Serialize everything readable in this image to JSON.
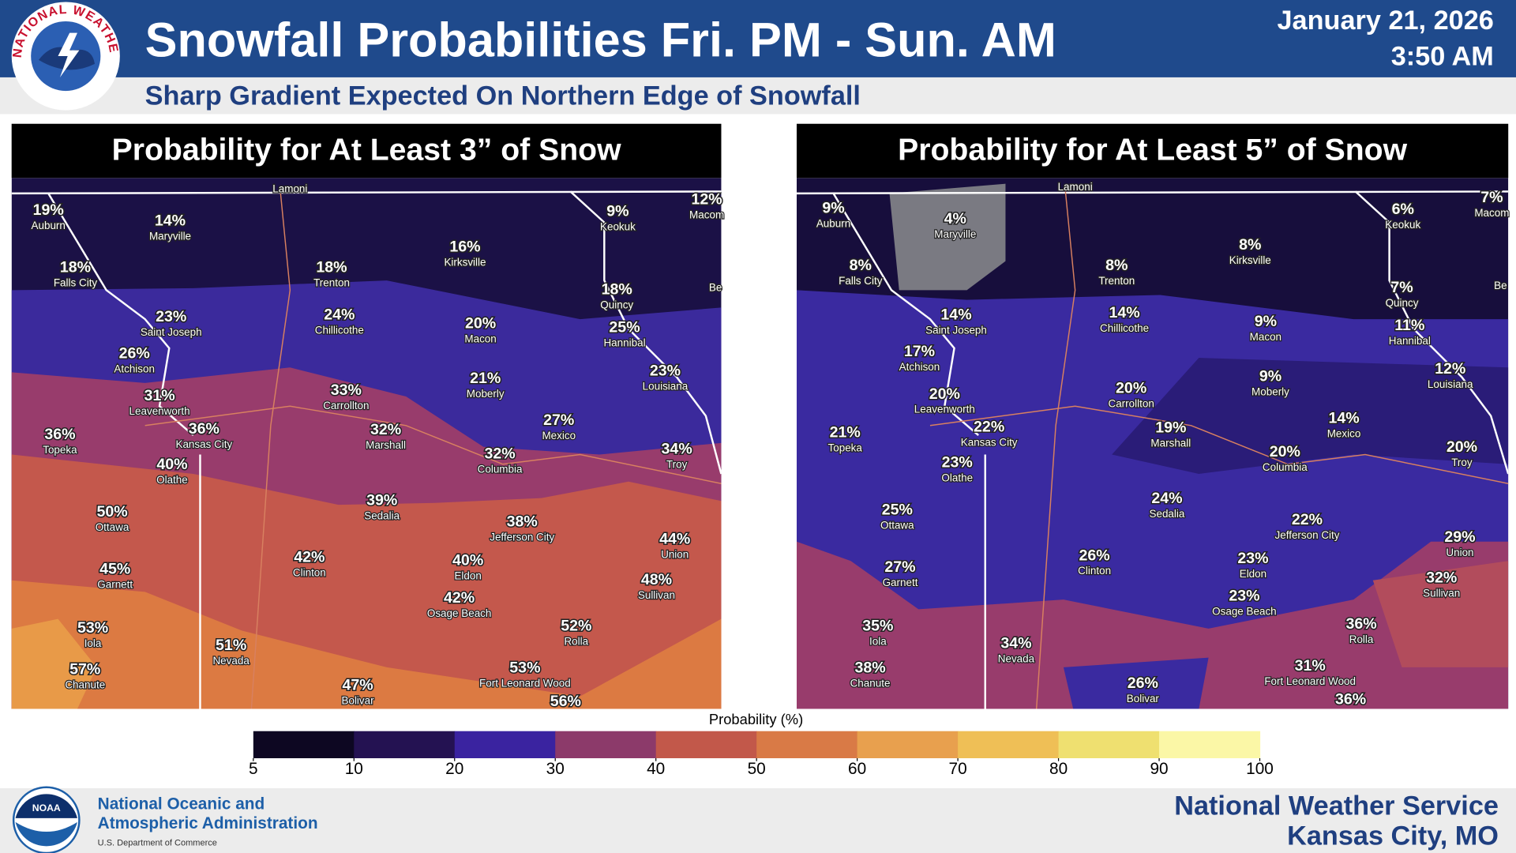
{
  "header": {
    "title": "Snowfall Probabilities Fri. PM - Sun. AM",
    "subtitle": "Sharp Gradient Expected On Northern Edge of Snowfall",
    "date": "January 21, 2026",
    "time": "3:50 AM",
    "logo_text": "NATIONAL WEATHER SERVICE"
  },
  "panels": [
    {
      "title": "Probability for At Least 3” of Snow",
      "places": [
        {
          "pct": "19%",
          "city": "Auburn"
        },
        {
          "pct": "14%",
          "city": "Maryville"
        },
        {
          "pct": "18%",
          "city": "Falls City"
        },
        {
          "pct": "18%",
          "city": "Trenton"
        },
        {
          "pct": "16%",
          "city": "Kirksville"
        },
        {
          "pct": "9%",
          "city": "Keokuk"
        },
        {
          "pct": "12%",
          "city": "Macom"
        },
        {
          "pct": "18%",
          "city": "Quincy"
        },
        {
          "pct": "23%",
          "city": "Saint Joseph"
        },
        {
          "pct": "24%",
          "city": "Chillicothe"
        },
        {
          "pct": "20%",
          "city": "Macon"
        },
        {
          "pct": "25%",
          "city": "Hannibal"
        },
        {
          "pct": "26%",
          "city": "Atchison"
        },
        {
          "pct": "23%",
          "city": "Louisiana"
        },
        {
          "pct": "31%",
          "city": "Leavenworth"
        },
        {
          "pct": "33%",
          "city": "Carrollton"
        },
        {
          "pct": "21%",
          "city": "Moberly"
        },
        {
          "pct": "36%",
          "city": "Topeka"
        },
        {
          "pct": "36%",
          "city": "Kansas City"
        },
        {
          "pct": "32%",
          "city": "Marshall"
        },
        {
          "pct": "27%",
          "city": "Mexico"
        },
        {
          "pct": "40%",
          "city": "Olathe"
        },
        {
          "pct": "32%",
          "city": "Columbia"
        },
        {
          "pct": "34%",
          "city": "Troy"
        },
        {
          "pct": "50%",
          "city": "Ottawa"
        },
        {
          "pct": "39%",
          "city": "Sedalia"
        },
        {
          "pct": "38%",
          "city": "Jefferson City"
        },
        {
          "pct": "44%",
          "city": "Union"
        },
        {
          "pct": "45%",
          "city": "Garnett"
        },
        {
          "pct": "42%",
          "city": "Clinton"
        },
        {
          "pct": "40%",
          "city": "Eldon"
        },
        {
          "pct": "48%",
          "city": "Sullivan"
        },
        {
          "pct": "42%",
          "city": "Osage Beach"
        },
        {
          "pct": "53%",
          "city": "Iola"
        },
        {
          "pct": "52%",
          "city": "Rolla"
        },
        {
          "pct": "51%",
          "city": "Nevada"
        },
        {
          "pct": "57%",
          "city": "Chanute"
        },
        {
          "pct": "53%",
          "city": "Fort Leonard Wood"
        },
        {
          "pct": "47%",
          "city": "Bolivar"
        },
        {
          "pct": "56%"
        },
        {
          "city": "Lamoni"
        },
        {
          "city": "Be"
        }
      ]
    },
    {
      "title": "Probability for At Least 5” of Snow",
      "places": [
        {
          "pct": "9%",
          "city": "Auburn"
        },
        {
          "pct": "4%",
          "city": "Maryville"
        },
        {
          "pct": "8%",
          "city": "Falls City"
        },
        {
          "pct": "8%",
          "city": "Trenton"
        },
        {
          "pct": "8%",
          "city": "Kirksville"
        },
        {
          "pct": "6%",
          "city": "Keokuk"
        },
        {
          "pct": "7%",
          "city": "Macom"
        },
        {
          "pct": "7%",
          "city": "Quincy"
        },
        {
          "pct": "14%",
          "city": "Saint Joseph"
        },
        {
          "pct": "14%",
          "city": "Chillicothe"
        },
        {
          "pct": "9%",
          "city": "Macon"
        },
        {
          "pct": "11%",
          "city": "Hannibal"
        },
        {
          "pct": "17%",
          "city": "Atchison"
        },
        {
          "pct": "12%",
          "city": "Louisiana"
        },
        {
          "pct": "20%",
          "city": "Leavenworth"
        },
        {
          "pct": "20%",
          "city": "Carrollton"
        },
        {
          "pct": "9%",
          "city": "Moberly"
        },
        {
          "pct": "21%",
          "city": "Topeka"
        },
        {
          "pct": "22%",
          "city": "Kansas City"
        },
        {
          "pct": "19%",
          "city": "Marshall"
        },
        {
          "pct": "14%",
          "city": "Mexico"
        },
        {
          "pct": "23%",
          "city": "Olathe"
        },
        {
          "pct": "20%",
          "city": "Columbia"
        },
        {
          "pct": "20%",
          "city": "Troy"
        },
        {
          "pct": "25%",
          "city": "Ottawa"
        },
        {
          "pct": "24%",
          "city": "Sedalia"
        },
        {
          "pct": "22%",
          "city": "Jefferson City"
        },
        {
          "pct": "29%",
          "city": "Union"
        },
        {
          "pct": "27%",
          "city": "Garnett"
        },
        {
          "pct": "26%",
          "city": "Clinton"
        },
        {
          "pct": "23%",
          "city": "Eldon"
        },
        {
          "pct": "32%",
          "city": "Sullivan"
        },
        {
          "pct": "23%",
          "city": "Osage Beach"
        },
        {
          "pct": "35%",
          "city": "Iola"
        },
        {
          "pct": "36%",
          "city": "Rolla"
        },
        {
          "pct": "34%",
          "city": "Nevada"
        },
        {
          "pct": "38%",
          "city": "Chanute"
        },
        {
          "pct": "31%",
          "city": "Fort Leonard Wood"
        },
        {
          "pct": "26%",
          "city": "Bolivar"
        },
        {
          "pct": "36%"
        },
        {
          "city": "Lamoni"
        },
        {
          "city": "Be"
        }
      ]
    }
  ],
  "legend": {
    "title": "Probability (%)",
    "ticks": [
      5,
      10,
      20,
      30,
      40,
      50,
      60,
      70,
      80,
      90,
      100
    ],
    "colors": [
      "#0d0722",
      "#241252",
      "#3a23a0",
      "#8c3a6a",
      "#c2584a",
      "#d97a46",
      "#e8a04e",
      "#efbf56",
      "#efe070",
      "#fbf7a6"
    ]
  },
  "footer": {
    "agency_line1": "National Oceanic and",
    "agency_line2": "Atmospheric Administration",
    "department": "U.S. Department of Commerce",
    "office": "National Weather Service",
    "location": "Kansas City, MO",
    "noaa_logo": "NOAA"
  }
}
